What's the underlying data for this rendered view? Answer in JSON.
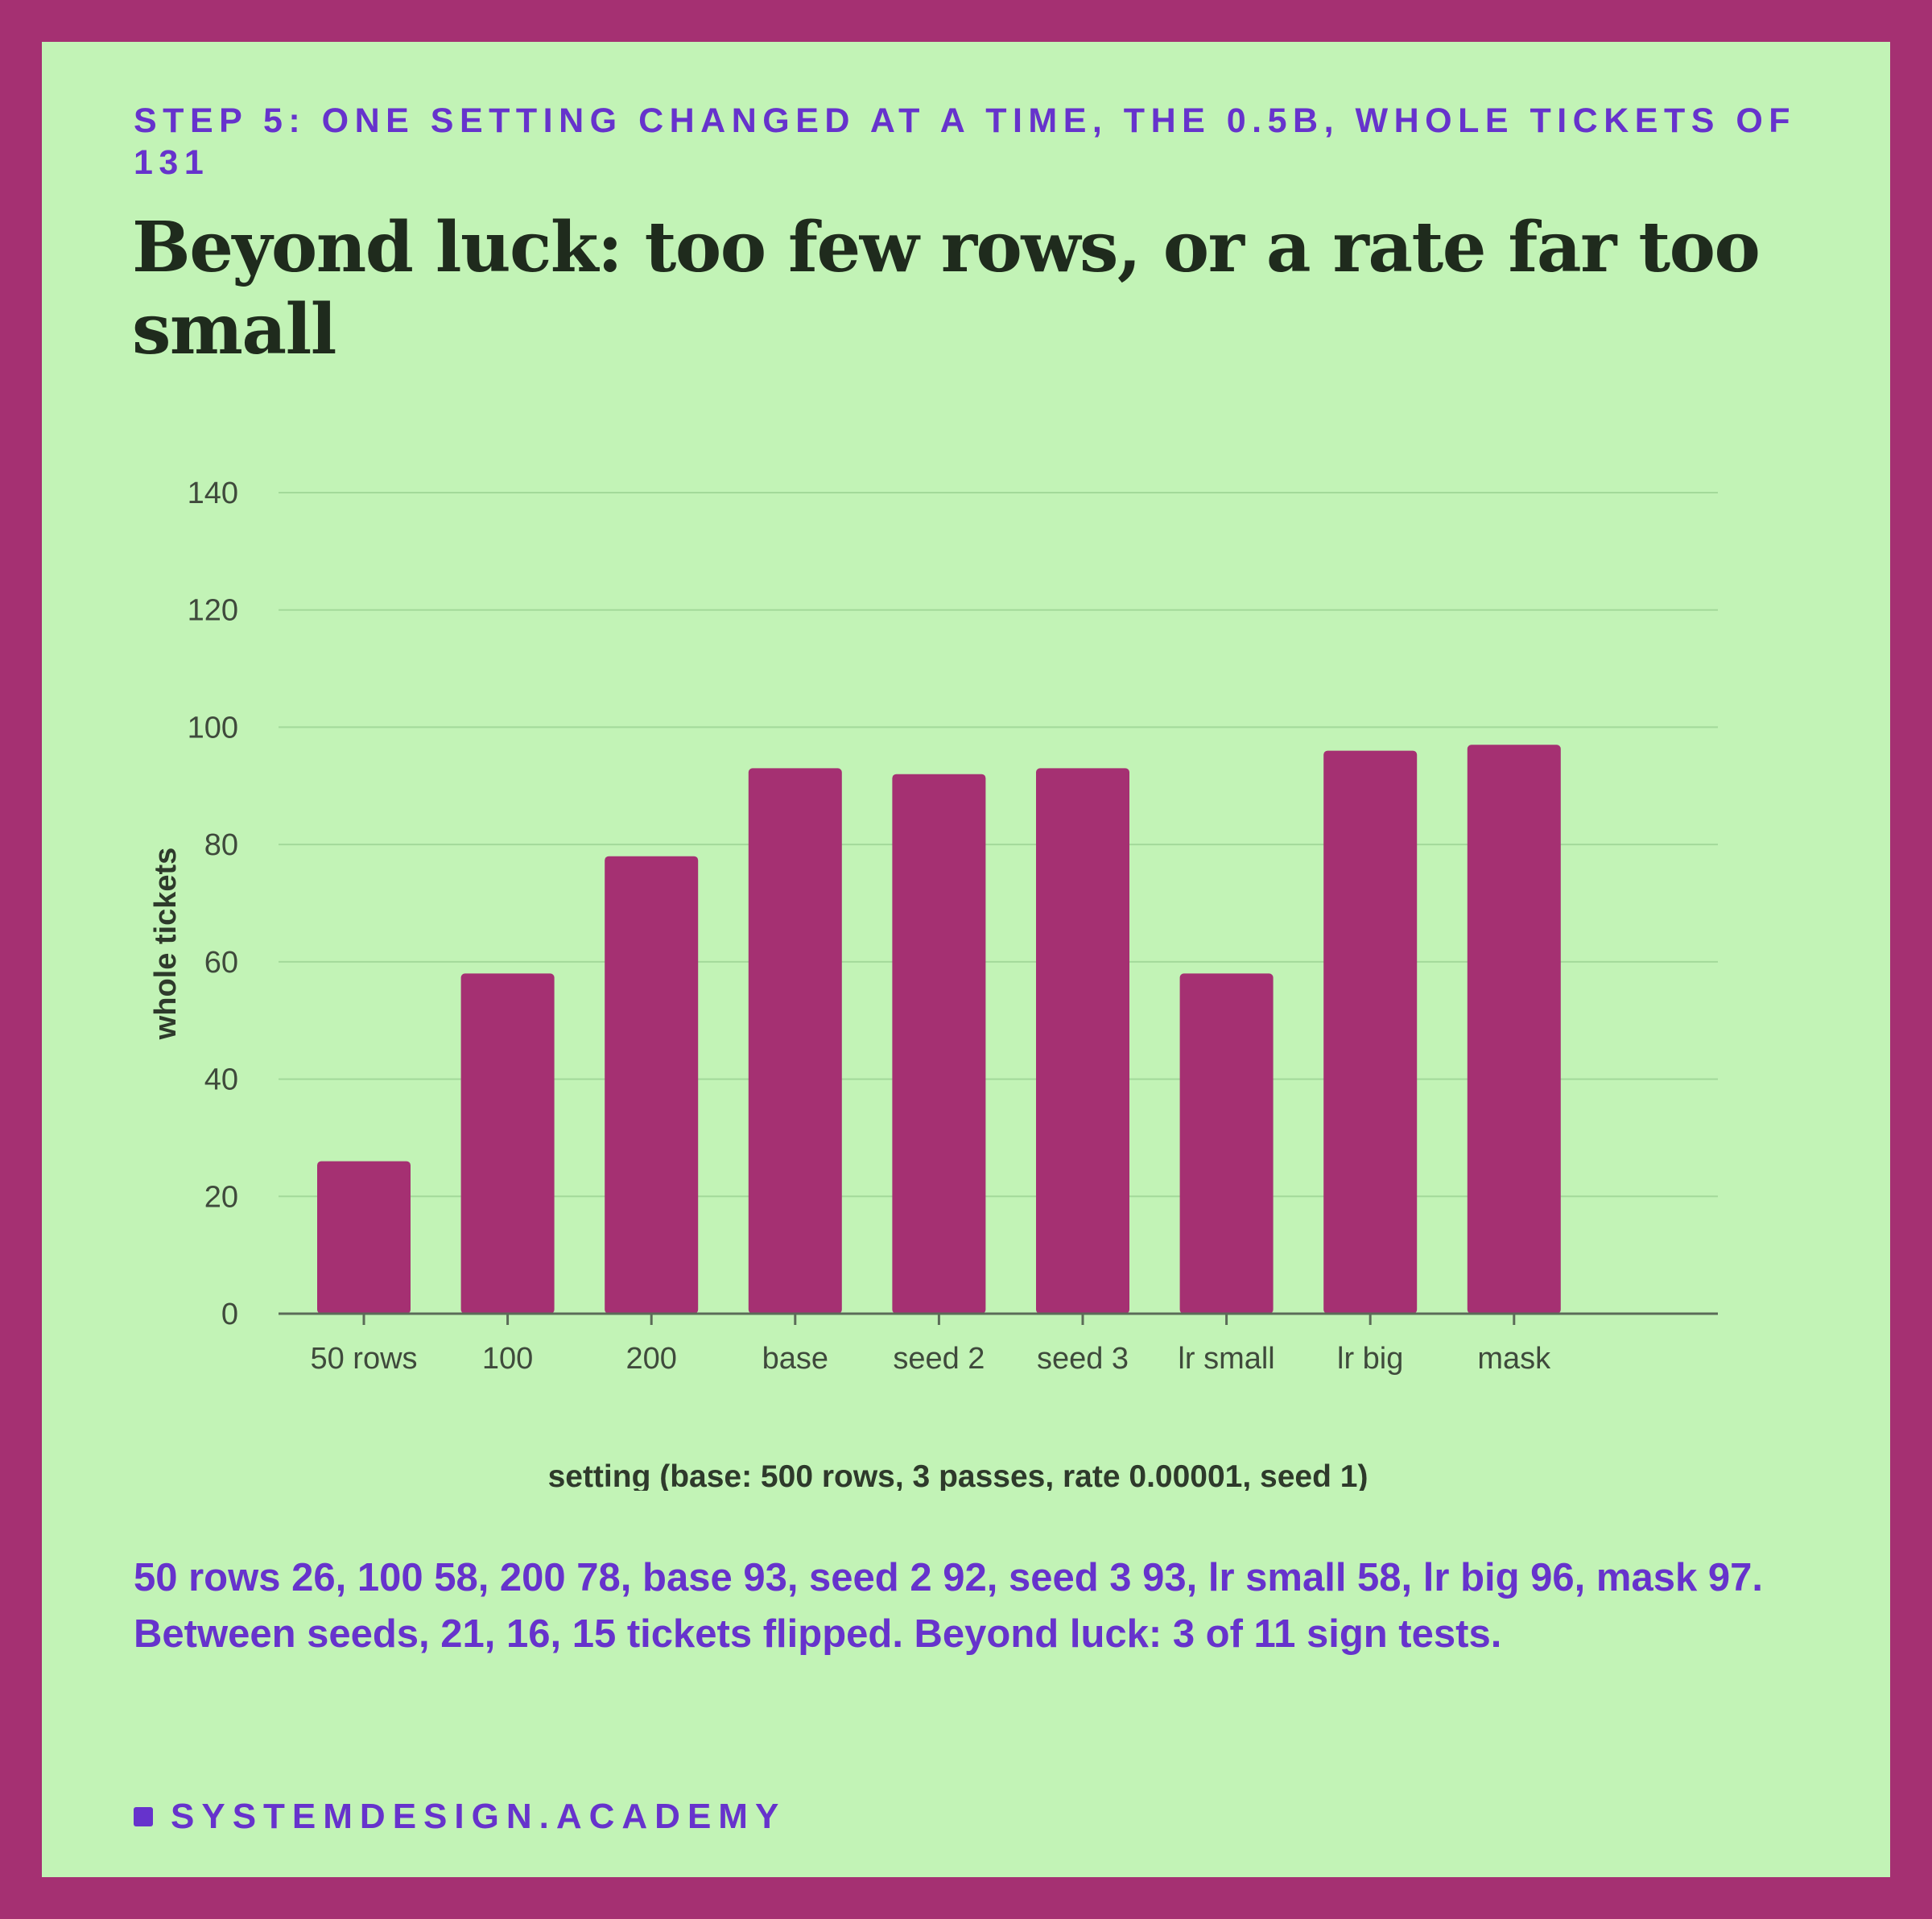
{
  "header": {
    "eyebrow": "STEP 5: ONE SETTING CHANGED AT A TIME, THE 0.5B, WHOLE TICKETS OF 131",
    "title": "Beyond luck: too few rows, or a rate far too small"
  },
  "chart_data": {
    "type": "bar",
    "categories": [
      "50 rows",
      "100",
      "200",
      "base",
      "seed 2",
      "seed 3",
      "lr small",
      "lr big",
      "mask"
    ],
    "values": [
      26,
      58,
      78,
      93,
      92,
      93,
      58,
      96,
      97
    ],
    "xlabel": "setting (base: 500 rows, 3 passes, rate 0.00001, seed 1)",
    "ylabel": "whole tickets",
    "ylim": [
      0,
      140
    ],
    "yticks": [
      0,
      20,
      40,
      60,
      80,
      100,
      120,
      140
    ],
    "grid": true,
    "legend": "none",
    "bar_color": "#a53072"
  },
  "summary": "50 rows 26, 100 58, 200 78, base 93, seed 2 92, seed 3 93, lr small 58, lr big 96, mask 97. Between seeds, 21, 16, 15 tickets flipped. Beyond luck: 3 of 11 sign tests.",
  "footer": {
    "brand": "SYSTEMDESIGN.ACADEMY"
  },
  "colors": {
    "frame": "#a53072",
    "background": "#c2f3b6",
    "accent": "#6633cc",
    "title": "#1f2b1d"
  }
}
